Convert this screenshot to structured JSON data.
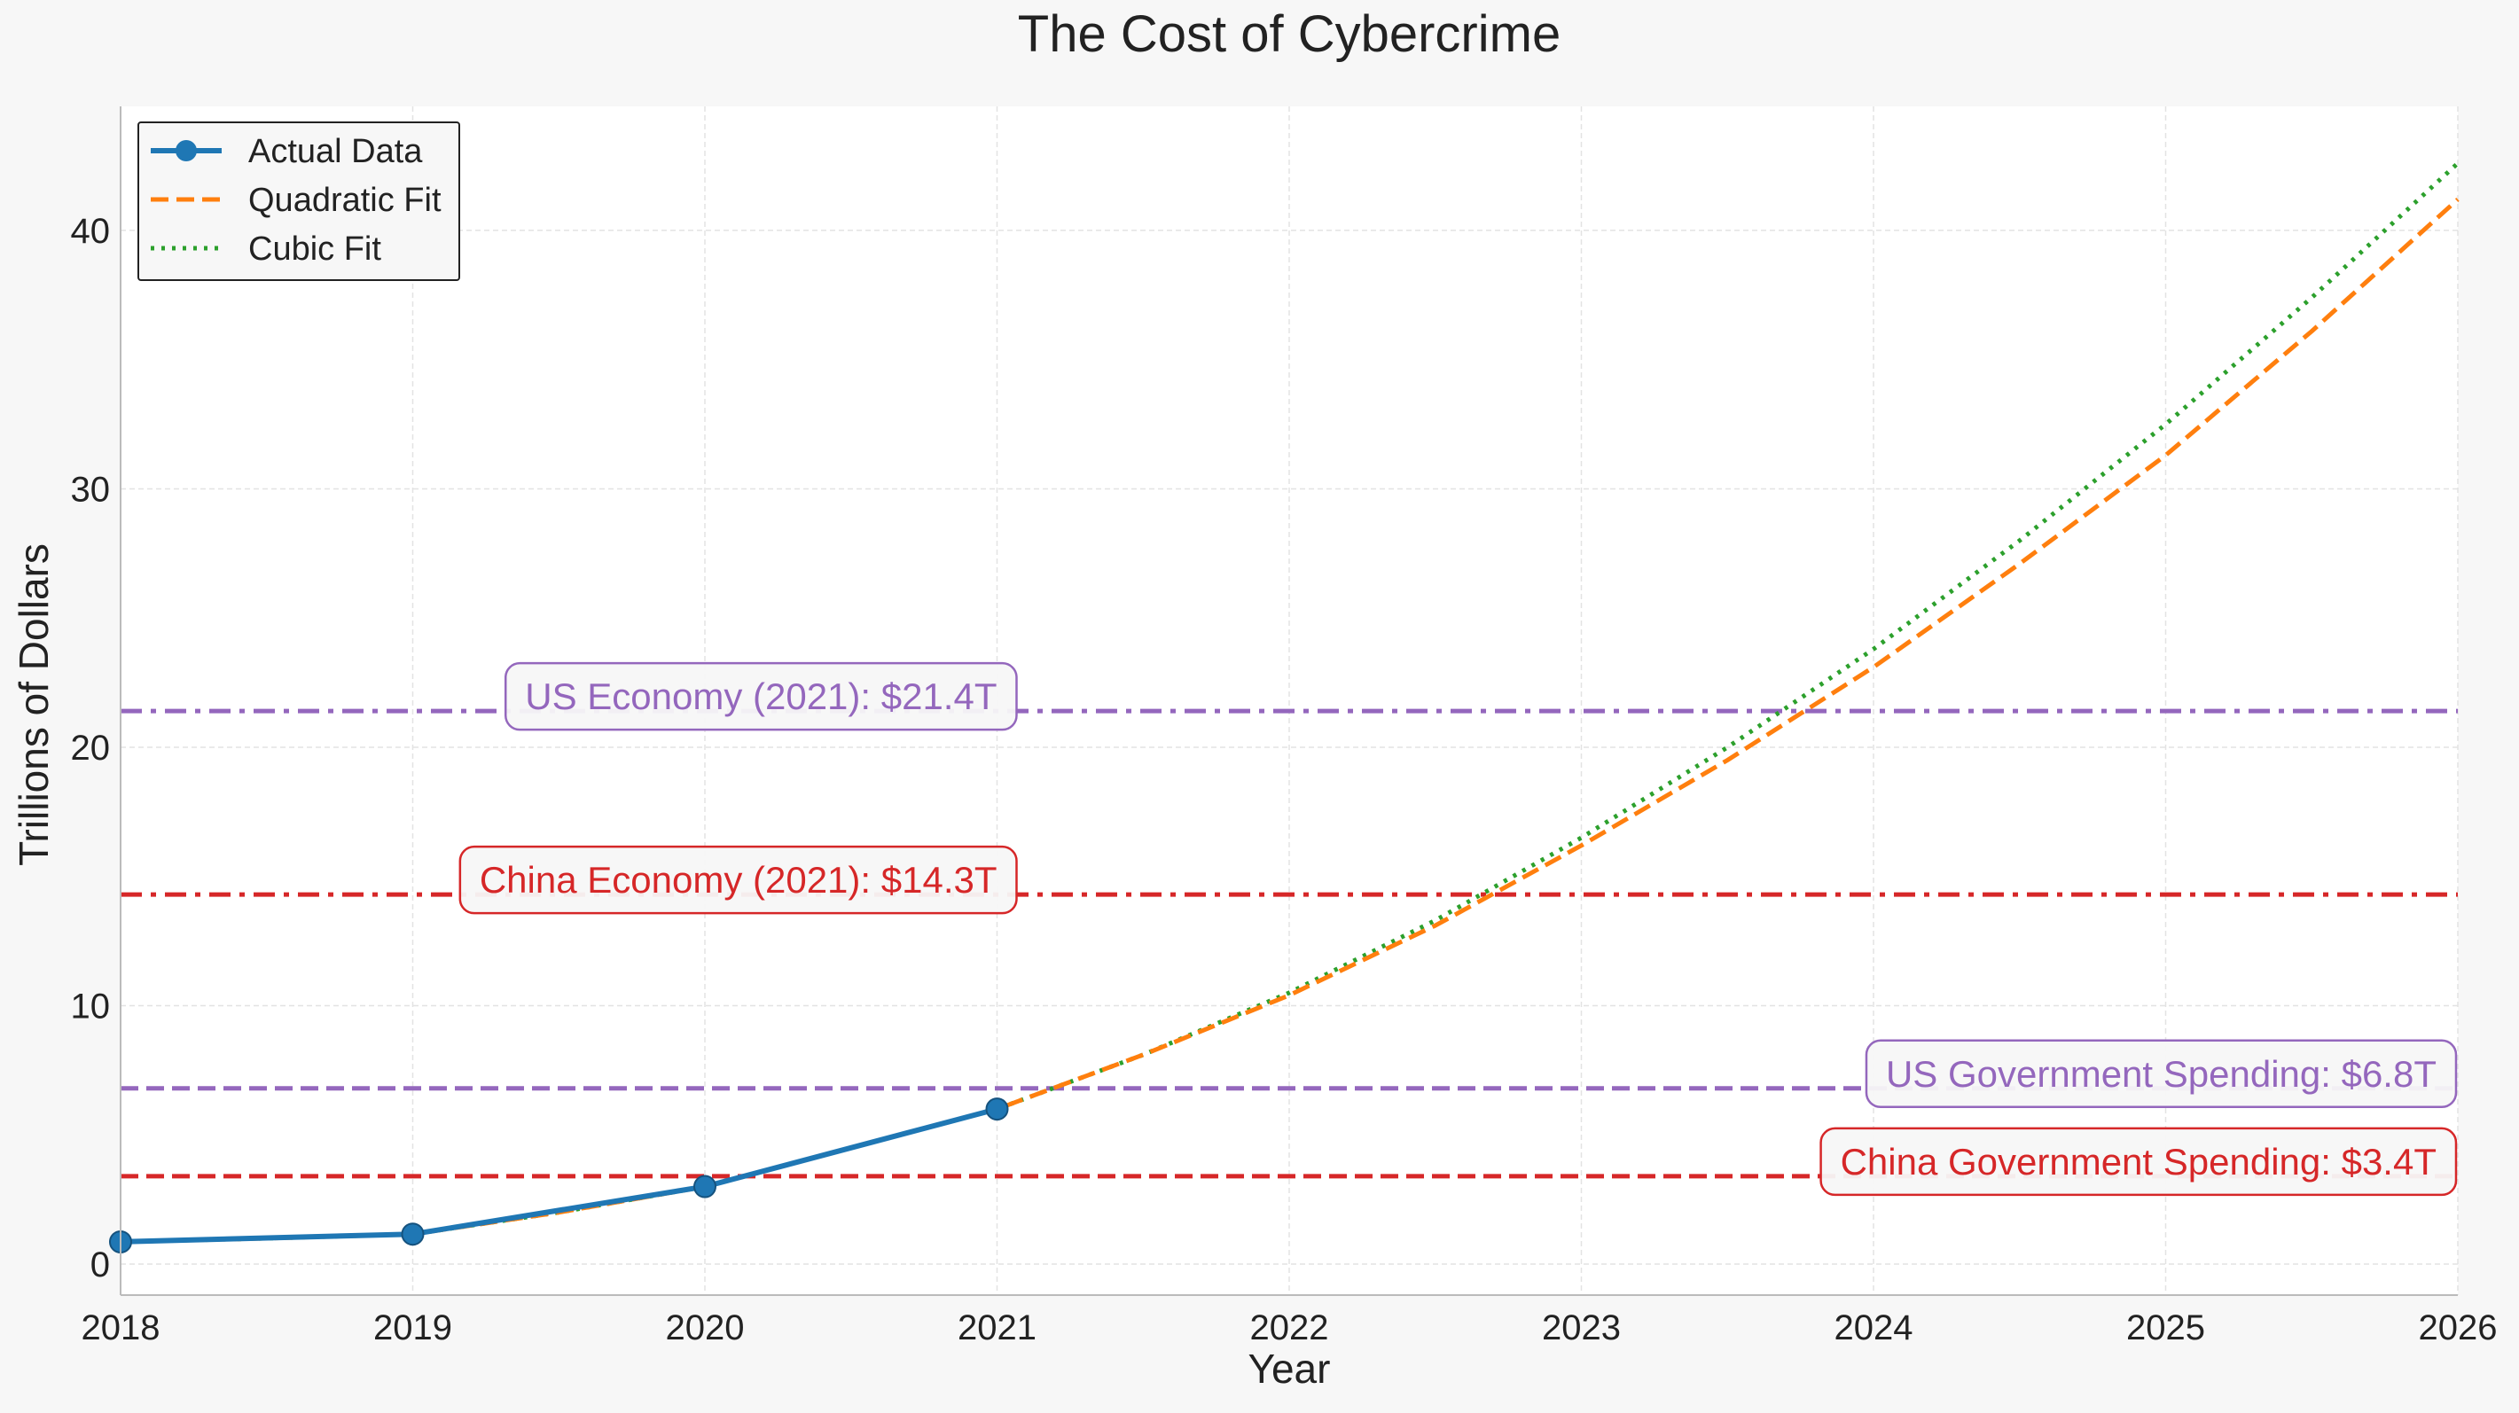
{
  "chart_data": {
    "type": "line",
    "title": "The Cost of Cybercrime",
    "xlabel": "Year",
    "ylabel": "Trillions of Dollars",
    "xlim": [
      2018,
      2026
    ],
    "ylim": [
      -1.2,
      44.8
    ],
    "xticks": [
      2018,
      2019,
      2020,
      2021,
      2022,
      2023,
      2024,
      2025,
      2026
    ],
    "yticks": [
      0,
      10,
      20,
      30,
      40
    ],
    "grid": true,
    "legend_position": "top-left",
    "series": [
      {
        "name": "Actual Data",
        "style": "solid-markers",
        "color": "#1f77b4",
        "x": [
          2018,
          2019,
          2020,
          2021
        ],
        "y": [
          0.86,
          1.16,
          3.0,
          6.0
        ]
      },
      {
        "name": "Quadratic Fit",
        "style": "dashed",
        "color": "#ff7f0e",
        "x": [
          2018,
          2018.5,
          2019,
          2019.5,
          2020,
          2020.5,
          2021,
          2021.5,
          2022,
          2022.5,
          2023,
          2023.5,
          2024,
          2024.5,
          2025,
          2025.5,
          2026
        ],
        "y": [
          0.86,
          1.0,
          1.16,
          2.0,
          3.0,
          4.5,
          6.0,
          8.1,
          10.4,
          13.1,
          16.2,
          19.5,
          23.1,
          27.1,
          31.3,
          36.1,
          41.2
        ]
      },
      {
        "name": "Cubic Fit",
        "style": "dotted",
        "color": "#2ca02c",
        "x": [
          2018,
          2018.5,
          2019,
          2019.5,
          2020,
          2020.5,
          2021,
          2021.5,
          2022,
          2022.5,
          2023,
          2023.5,
          2024,
          2024.5,
          2025,
          2025.5,
          2026
        ],
        "y": [
          0.86,
          1.0,
          1.16,
          2.0,
          3.0,
          4.5,
          6.0,
          8.1,
          10.5,
          13.3,
          16.5,
          20.0,
          23.8,
          28.0,
          32.5,
          37.4,
          42.6
        ]
      }
    ],
    "reference_lines": [
      {
        "label": "US Economy (2021): $21.4T",
        "value": 21.4,
        "style": "dashdot",
        "color": "#9467bd",
        "label_x": 2021.0
      },
      {
        "label": "China Economy (2021): $14.3T",
        "value": 14.3,
        "style": "dashdot",
        "color": "#d62728",
        "label_x": 2021.0
      },
      {
        "label": "US Government Spending: $6.8T",
        "value": 6.8,
        "style": "dashed",
        "color": "#9467bd",
        "label_x": 2026.0
      },
      {
        "label": "China Government Spending: $3.4T",
        "value": 3.4,
        "style": "dashed",
        "color": "#d62728",
        "label_x": 2026.0
      }
    ]
  }
}
